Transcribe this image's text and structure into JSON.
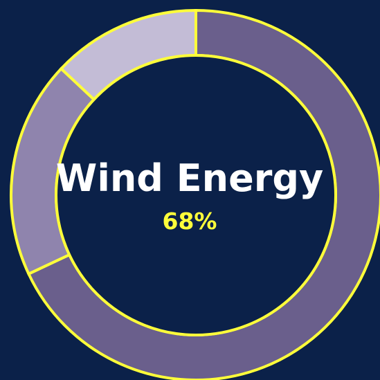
{
  "chart_data": {
    "type": "pie",
    "style": "donut",
    "center_title": "Wind Energy",
    "center_value": "68%",
    "slices": [
      {
        "value": 68,
        "color": "#6a5f8c"
      },
      {
        "value": 19,
        "color": "#8f84ad"
      },
      {
        "value": 13,
        "color": "#c3bcd6"
      }
    ],
    "border_color": "#ffff3a",
    "background_color": "#0b2149"
  }
}
